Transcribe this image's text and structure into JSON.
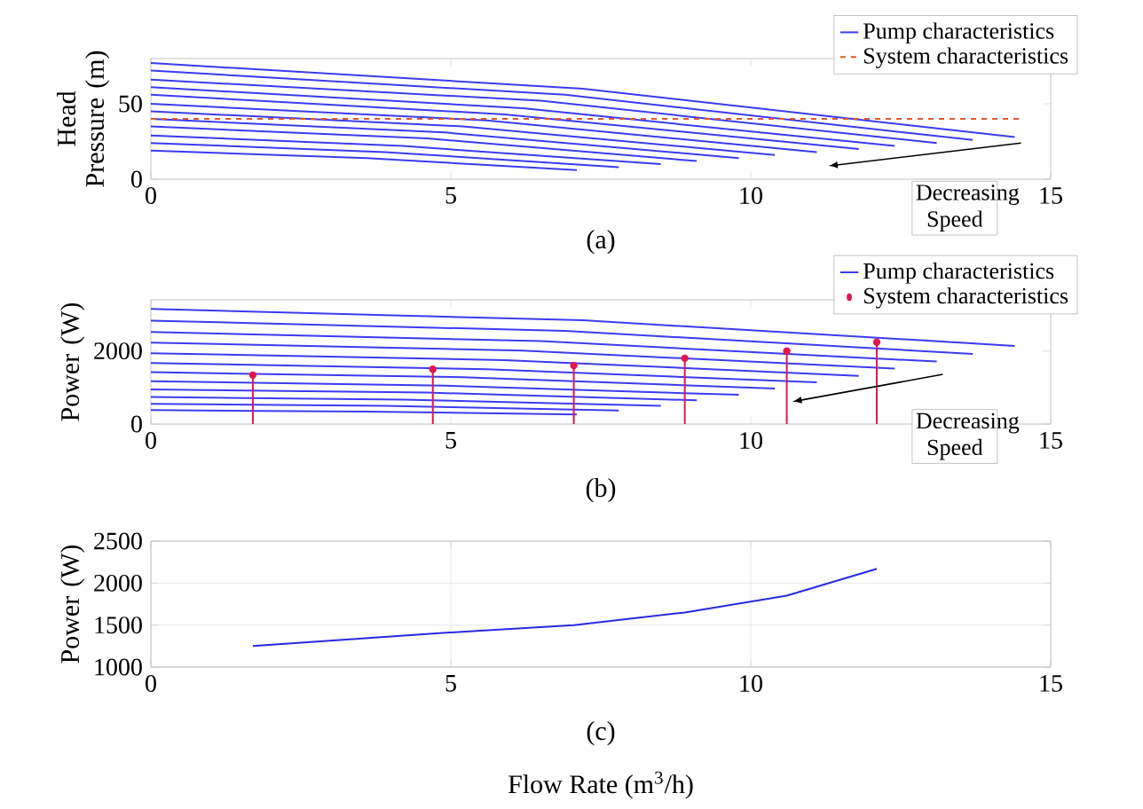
{
  "chart_data": [
    {
      "type": "line",
      "ylabel": "Head Pressure (m)",
      "xlim": [
        0,
        15
      ],
      "ylim": [
        0,
        80
      ],
      "xticks": [
        0,
        5,
        10,
        15
      ],
      "yticks": [
        0,
        50
      ],
      "legend": "top right",
      "annotations": [
        "(a)",
        "Decreasing Speed"
      ],
      "series": [
        {
          "name": "Pump characteristics",
          "color": "#3b3bf0",
          "x": [
            0,
            7.2,
            14.4
          ],
          "values": [
            77,
            60,
            28
          ]
        },
        {
          "color": "#3b3bf0",
          "x": [
            0,
            6.9,
            13.7
          ],
          "values": [
            72,
            56,
            26
          ]
        },
        {
          "color": "#3b3bf0",
          "x": [
            0,
            6.5,
            13.1
          ],
          "values": [
            66,
            52,
            24
          ]
        },
        {
          "color": "#3b3bf0",
          "x": [
            0,
            6.2,
            12.4
          ],
          "values": [
            61,
            47,
            22
          ]
        },
        {
          "color": "#3b3bf0",
          "x": [
            0,
            5.9,
            11.8
          ],
          "values": [
            56,
            43,
            20
          ]
        },
        {
          "color": "#3b3bf0",
          "x": [
            0,
            5.6,
            11.1
          ],
          "values": [
            50,
            39,
            18
          ]
        },
        {
          "color": "#3b3bf0",
          "x": [
            0,
            5.2,
            10.4
          ],
          "values": [
            45,
            35,
            16
          ]
        },
        {
          "color": "#3b3bf0",
          "x": [
            0,
            4.9,
            9.8
          ],
          "values": [
            40,
            31,
            14
          ]
        },
        {
          "color": "#3b3bf0",
          "x": [
            0,
            4.6,
            9.1
          ],
          "values": [
            35,
            27,
            12
          ]
        },
        {
          "color": "#3b3bf0",
          "x": [
            0,
            4.2,
            8.5
          ],
          "values": [
            29,
            22,
            10
          ]
        },
        {
          "color": "#3b3bf0",
          "x": [
            0,
            3.9,
            7.8
          ],
          "values": [
            24,
            18,
            8
          ]
        },
        {
          "color": "#3b3bf0",
          "x": [
            0,
            3.6,
            7.1
          ],
          "values": [
            19,
            14,
            6
          ]
        },
        {
          "name": "System characteristics",
          "color": "#e8552a",
          "line_style": "dashed",
          "x": [
            0,
            14.5
          ],
          "values": [
            40,
            40
          ]
        }
      ]
    },
    {
      "type": "line",
      "ylabel": "Power (W)",
      "xlim": [
        0,
        15
      ],
      "ylim": [
        0,
        3400
      ],
      "xticks": [
        0,
        5,
        10,
        15
      ],
      "yticks": [
        0,
        2000
      ],
      "legend": "top right",
      "annotations": [
        "(b)",
        "Decreasing Speed"
      ],
      "series": [
        {
          "name": "Pump characteristics",
          "color": "#3b3bf0",
          "x": [
            0,
            7.2,
            14.4
          ],
          "values": [
            3150,
            2840,
            2140
          ]
        },
        {
          "color": "#3b3bf0",
          "x": [
            0,
            6.9,
            13.7
          ],
          "values": [
            2830,
            2550,
            1920
          ]
        },
        {
          "color": "#3b3bf0",
          "x": [
            0,
            6.5,
            13.1
          ],
          "values": [
            2520,
            2270,
            1710
          ]
        },
        {
          "color": "#3b3bf0",
          "x": [
            0,
            6.2,
            12.4
          ],
          "values": [
            2230,
            2010,
            1520
          ]
        },
        {
          "color": "#3b3bf0",
          "x": [
            0,
            5.9,
            11.8
          ],
          "values": [
            1940,
            1750,
            1320
          ]
        },
        {
          "color": "#3b3bf0",
          "x": [
            0,
            5.6,
            11.1
          ],
          "values": [
            1670,
            1500,
            1140
          ]
        },
        {
          "color": "#3b3bf0",
          "x": [
            0,
            5.2,
            10.4
          ],
          "values": [
            1420,
            1280,
            970
          ]
        },
        {
          "color": "#3b3bf0",
          "x": [
            0,
            4.9,
            9.8
          ],
          "values": [
            1170,
            1050,
            800
          ]
        },
        {
          "color": "#3b3bf0",
          "x": [
            0,
            4.6,
            9.1
          ],
          "values": [
            950,
            860,
            650
          ]
        },
        {
          "color": "#3b3bf0",
          "x": [
            0,
            4.2,
            8.5
          ],
          "values": [
            740,
            670,
            500
          ]
        },
        {
          "color": "#3b3bf0",
          "x": [
            0,
            3.9,
            7.8
          ],
          "values": [
            550,
            500,
            370
          ]
        },
        {
          "color": "#3b3bf0",
          "x": [
            0,
            3.6,
            7.1
          ],
          "values": [
            380,
            340,
            260
          ]
        },
        {
          "name": "System characteristics",
          "type": "lollipop",
          "marker": "circle",
          "color": "#e0184d",
          "x": [
            1.7,
            4.7,
            7.05,
            8.9,
            10.6,
            12.1
          ],
          "values": [
            1340,
            1500,
            1600,
            1800,
            2000,
            2240
          ]
        }
      ]
    },
    {
      "type": "line",
      "xlabel": "Flow Rate (m$^{3}$/h)",
      "ylabel": "Power (W)",
      "xlim": [
        0,
        15
      ],
      "ylim": [
        1000,
        2500
      ],
      "xticks": [
        0,
        5,
        10,
        15
      ],
      "yticks": [
        1000,
        1500,
        2000,
        2500
      ],
      "grid": true,
      "annotations": [
        "(c)"
      ],
      "series": [
        {
          "color": "#2a2ae0",
          "x": [
            1.7,
            4.7,
            7.05,
            8.9,
            10.6,
            12.1
          ],
          "values": [
            1250,
            1400,
            1500,
            1650,
            1850,
            2170
          ]
        }
      ]
    }
  ]
}
